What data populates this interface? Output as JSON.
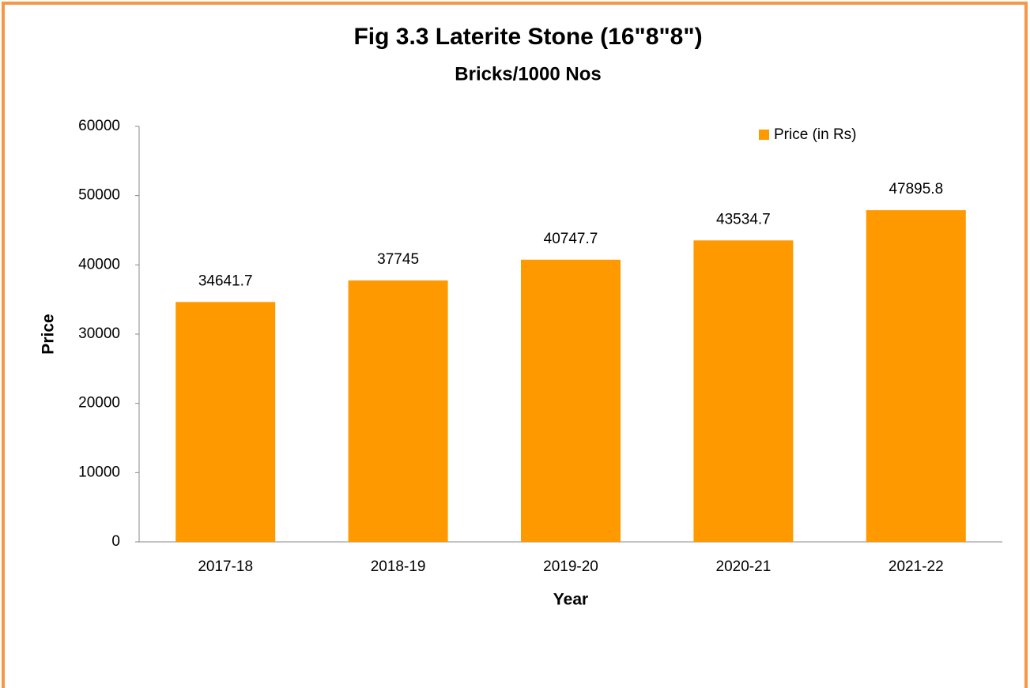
{
  "chart_data": {
    "type": "bar",
    "title": "Fig 3.3 Laterite Stone (16\"8\"8\")",
    "subtitle": "Bricks/1000 Nos",
    "x_label": "Year",
    "y_label": "Price",
    "categories": [
      "2017-18",
      "2018-19",
      "2019-20",
      "2020-21",
      "2021-22"
    ],
    "series": [
      {
        "name": "Price (in Rs)",
        "color": "#ff9900",
        "values": [
          34641.7,
          37745,
          40747.7,
          43534.7,
          47895.8
        ]
      }
    ],
    "ylim": [
      0,
      60000
    ],
    "yticks": [
      0,
      10000,
      20000,
      30000,
      40000,
      50000,
      60000
    ],
    "grid": false,
    "legend": "top-right"
  }
}
